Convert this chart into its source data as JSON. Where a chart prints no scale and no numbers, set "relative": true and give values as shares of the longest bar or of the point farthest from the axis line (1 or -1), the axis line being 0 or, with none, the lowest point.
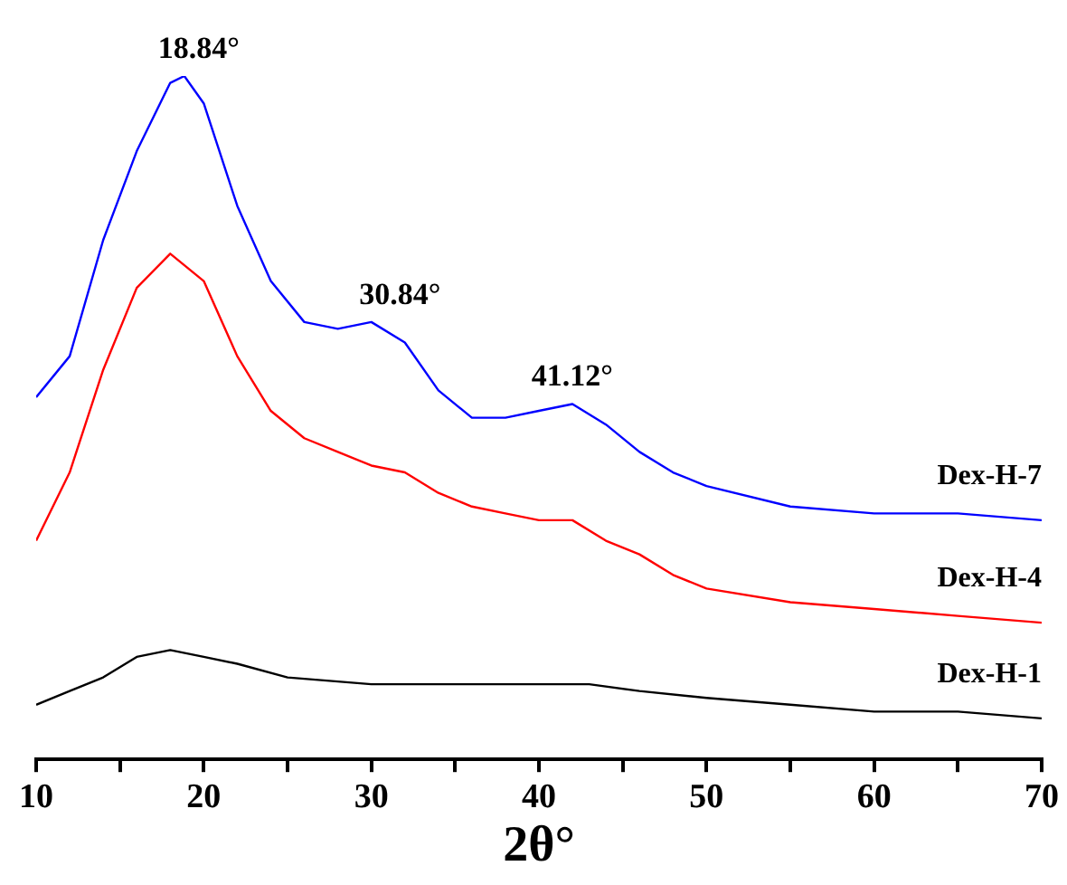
{
  "chart_data": {
    "type": "line",
    "relative": true,
    "xlabel": "2θ°",
    "xlim": [
      10,
      70
    ],
    "xticks": [
      10,
      {
        "value": 15,
        "label": null
      },
      20,
      {
        "value": 25,
        "label": null
      },
      30,
      {
        "value": 35,
        "label": null
      },
      40,
      {
        "value": 45,
        "label": null
      },
      50,
      {
        "value": 55,
        "label": null
      },
      60,
      {
        "value": 65,
        "label": null
      },
      70
    ],
    "grid": false,
    "legend": false,
    "marker": "none",
    "line_style": "solid",
    "annotations": [
      {
        "text": "18.84°",
        "x": 18.84,
        "y": 1.0
      },
      {
        "text": "30.84°",
        "x": 30.84,
        "y": 0.64
      },
      {
        "text": "41.12°",
        "x": 41.12,
        "y": 0.52
      }
    ],
    "series": [
      {
        "name": "Dex-H-7",
        "color": "#0000ff",
        "x": [
          10,
          12,
          14,
          16,
          18,
          18.84,
          20,
          22,
          24,
          26,
          28,
          30,
          32,
          34,
          36,
          38,
          40,
          42,
          44,
          46,
          48,
          50,
          55,
          60,
          65,
          70
        ],
        "values": [
          0.53,
          0.59,
          0.76,
          0.89,
          0.99,
          1.0,
          0.96,
          0.81,
          0.7,
          0.64,
          0.63,
          0.64,
          0.61,
          0.54,
          0.5,
          0.5,
          0.51,
          0.52,
          0.49,
          0.45,
          0.42,
          0.4,
          0.37,
          0.36,
          0.36,
          0.35
        ]
      },
      {
        "name": "Dex-H-4",
        "color": "#ff0000",
        "x": [
          10,
          12,
          14,
          16,
          18,
          20,
          22,
          24,
          26,
          28,
          30,
          32,
          34,
          36,
          38,
          40,
          42,
          44,
          46,
          48,
          50,
          55,
          60,
          65,
          70
        ],
        "values": [
          0.32,
          0.42,
          0.57,
          0.69,
          0.74,
          0.7,
          0.59,
          0.51,
          0.47,
          0.45,
          0.43,
          0.42,
          0.39,
          0.37,
          0.36,
          0.35,
          0.35,
          0.32,
          0.3,
          0.27,
          0.25,
          0.23,
          0.22,
          0.21,
          0.2
        ]
      },
      {
        "name": "Dex-H-1",
        "color": "#000000",
        "x": [
          10,
          12,
          14,
          16,
          18,
          20,
          22,
          25,
          30,
          35,
          40,
          43,
          46,
          50,
          55,
          60,
          65,
          70
        ],
        "values": [
          0.08,
          0.1,
          0.12,
          0.15,
          0.16,
          0.15,
          0.14,
          0.12,
          0.11,
          0.11,
          0.11,
          0.11,
          0.1,
          0.09,
          0.08,
          0.07,
          0.07,
          0.06
        ]
      }
    ]
  }
}
